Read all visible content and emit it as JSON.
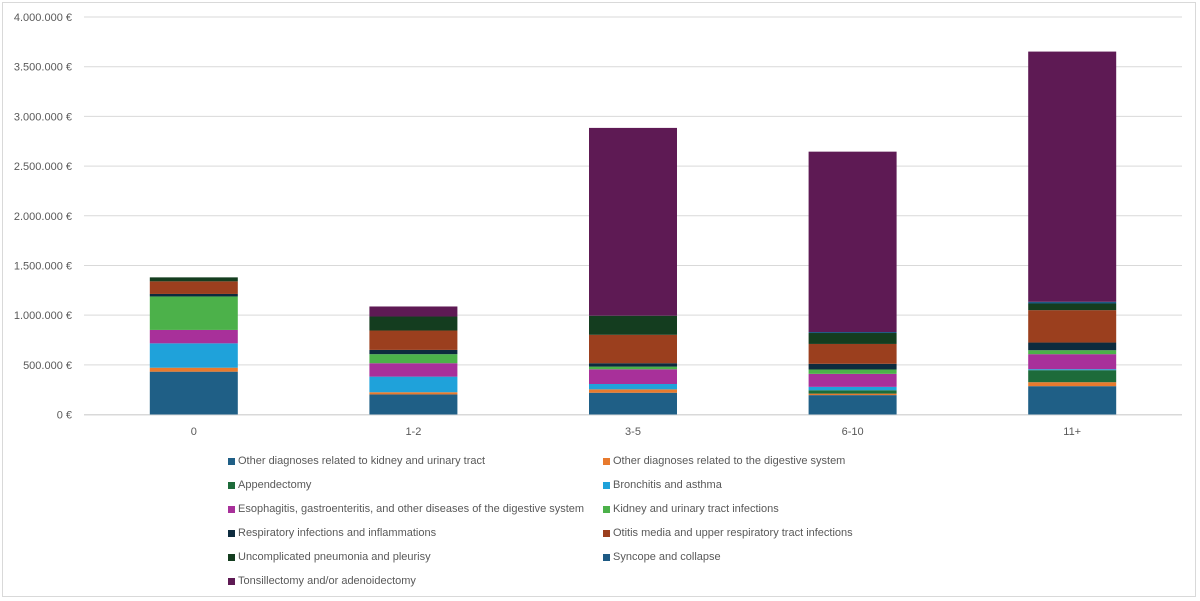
{
  "chart_data": {
    "type": "bar",
    "stacked": true,
    "title": "",
    "xlabel": "",
    "ylabel": "",
    "ylim": [
      0,
      4000000
    ],
    "ytick_step": 500000,
    "ytick_labels": [
      "0 €",
      "500.000 €",
      "1.000.000 €",
      "1.500.000 €",
      "2.000.000 €",
      "2.500.000 €",
      "3.000.000 €",
      "3.500.000 €",
      "4.000.000 €"
    ],
    "grid": true,
    "legend_position": "bottom",
    "categories": [
      "0",
      "1-2",
      "3-5",
      "6-10",
      "11+"
    ],
    "series": [
      {
        "name": "Other diagnoses related to kidney and urinary tract",
        "color": "#1f5f86",
        "values": [
          431000,
          202000,
          219000,
          195000,
          285000
        ]
      },
      {
        "name": "Other diagnoses related to the digestive system",
        "color": "#e87a2d",
        "values": [
          40000,
          22000,
          34000,
          15000,
          40000
        ]
      },
      {
        "name": "Appendectomy",
        "color": "#1d6b3a",
        "values": [
          0,
          0,
          0,
          34000,
          121000
        ]
      },
      {
        "name": "Bronchitis and asthma",
        "color": "#1fa2da",
        "values": [
          245000,
          157000,
          54000,
          34000,
          10000
        ]
      },
      {
        "name": "Esophagitis, gastroenteritis, and other diseases of the digestive system",
        "color": "#a8309a",
        "values": [
          135000,
          135000,
          148000,
          131000,
          151000
        ]
      },
      {
        "name": "Kidney and urinary tract infections",
        "color": "#4cb14a",
        "values": [
          337000,
          91000,
          27000,
          44000,
          40000
        ]
      },
      {
        "name": "Respiratory infections and inflammations",
        "color": "#0d2b3e",
        "values": [
          25000,
          43000,
          34000,
          57000,
          77000
        ]
      },
      {
        "name": "Otitis media and upper respiratory tract infections",
        "color": "#9b3f1e",
        "values": [
          127000,
          195000,
          286000,
          200000,
          326000
        ]
      },
      {
        "name": "Uncomplicated pneumonia and pleurisy",
        "color": "#143d1f",
        "values": [
          40000,
          141000,
          192000,
          110000,
          67000
        ]
      },
      {
        "name": "Syncope and collapse",
        "color": "#1d5a84",
        "values": [
          0,
          0,
          0,
          10000,
          17000
        ]
      },
      {
        "name": "Tonsillectomy and/or adenoidectomy",
        "color": "#5e1a54",
        "values": [
          0,
          101000,
          1890000,
          1815000,
          2518000
        ]
      }
    ]
  }
}
